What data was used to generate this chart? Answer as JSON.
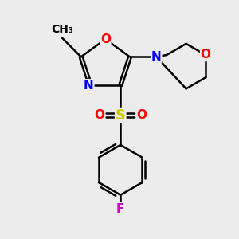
{
  "bg_color": "#ececec",
  "bond_color": "#000000",
  "bond_width": 1.8,
  "atom_colors": {
    "N": "#0000ff",
    "O": "#ff0000",
    "S": "#cccc00",
    "F": "#cc00cc",
    "C": "#000000"
  },
  "font_size": 11,
  "fig_size": [
    3.0,
    3.0
  ],
  "dpi": 100
}
